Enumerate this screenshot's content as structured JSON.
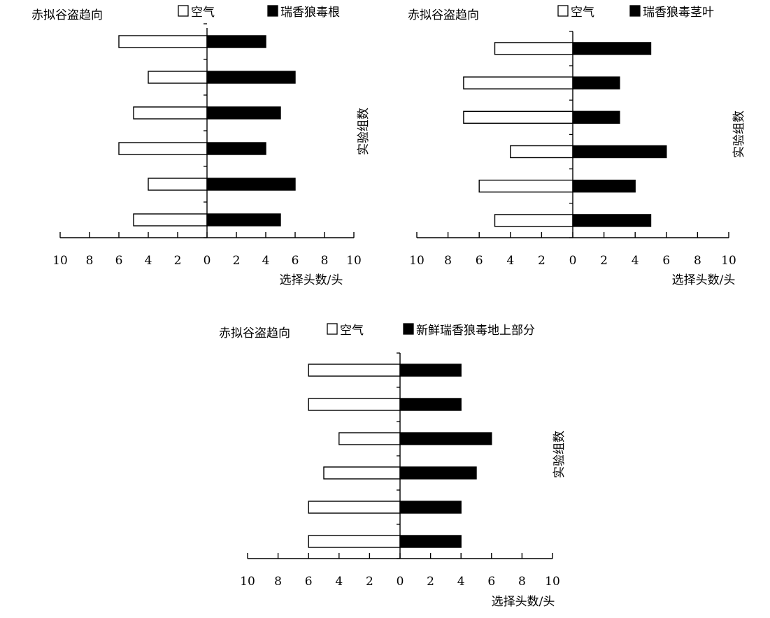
{
  "chart_data": [
    {
      "type": "bar",
      "orientation": "horizontal-diverging",
      "title": "赤拟谷盗趋向",
      "xlabel": "选择头数/头",
      "ylabel": "实验组数",
      "xlim": [
        -10,
        10
      ],
      "x_ticks": [
        -10,
        -8,
        -6,
        -4,
        -2,
        0,
        2,
        4,
        6,
        8,
        10
      ],
      "x_tick_labels": [
        "10",
        "8",
        "6",
        "4",
        "2",
        "0",
        "2",
        "4",
        "6",
        "8",
        "10"
      ],
      "legend_position": "top",
      "series": [
        {
          "name": "空气",
          "side": "left",
          "color": "#ffffff",
          "values": [
            6,
            4,
            5,
            6,
            4,
            5
          ]
        },
        {
          "name": "瑞香狼毒根",
          "side": "right",
          "color": "#000000",
          "values": [
            4,
            6,
            5,
            4,
            6,
            5
          ]
        }
      ]
    },
    {
      "type": "bar",
      "orientation": "horizontal-diverging",
      "title": "赤拟谷盗趋向",
      "xlabel": "选择头数/头",
      "ylabel": "实验组数",
      "xlim": [
        -10,
        10
      ],
      "x_ticks": [
        -10,
        -8,
        -6,
        -4,
        -2,
        0,
        2,
        4,
        6,
        8,
        10
      ],
      "x_tick_labels": [
        "10",
        "8",
        "6",
        "4",
        "2",
        "0",
        "2",
        "4",
        "6",
        "8",
        "10"
      ],
      "legend_position": "top",
      "series": [
        {
          "name": "空气",
          "side": "left",
          "color": "#ffffff",
          "values": [
            5,
            7,
            7,
            4,
            6,
            5
          ]
        },
        {
          "name": "瑞香狼毒茎叶",
          "side": "right",
          "color": "#000000",
          "values": [
            5,
            3,
            3,
            6,
            4,
            5
          ]
        }
      ]
    },
    {
      "type": "bar",
      "orientation": "horizontal-diverging",
      "title": "赤拟谷盗趋向",
      "xlabel": "选择头数/头",
      "ylabel": "实验组数",
      "xlim": [
        -10,
        10
      ],
      "x_ticks": [
        -10,
        -8,
        -6,
        -4,
        -2,
        0,
        2,
        4,
        6,
        8,
        10
      ],
      "x_tick_labels": [
        "10",
        "8",
        "6",
        "4",
        "2",
        "0",
        "2",
        "4",
        "6",
        "8",
        "10"
      ],
      "legend_position": "top",
      "series": [
        {
          "name": "空气",
          "side": "left",
          "color": "#ffffff",
          "values": [
            6,
            6,
            4,
            5,
            6,
            6
          ]
        },
        {
          "name": "新鲜瑞香狼毒地上部分",
          "side": "right",
          "color": "#000000",
          "values": [
            4,
            4,
            6,
            5,
            4,
            4
          ]
        }
      ]
    }
  ]
}
